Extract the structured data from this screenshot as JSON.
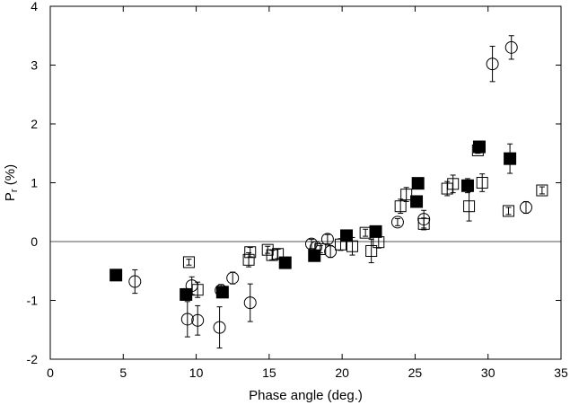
{
  "chart_data": {
    "type": "scatter",
    "xlabel": "Phase angle (deg.)",
    "ylabel_main": "P",
    "ylabel_sub": "r",
    "ylabel_rest": " (%)",
    "xlim": [
      0,
      35
    ],
    "ylim": [
      -2,
      4
    ],
    "x_ticks": [
      0,
      5,
      10,
      15,
      20,
      25,
      30,
      35
    ],
    "y_ticks": [
      -2,
      -1,
      0,
      1,
      2,
      3,
      4
    ],
    "x_tick_labels": [
      "0",
      "5",
      "10",
      "15",
      "20",
      "25",
      "30",
      "35"
    ],
    "y_tick_labels": [
      "-2",
      "-1",
      "0",
      "1",
      "2",
      "3",
      "4"
    ],
    "reference_line_y": 0,
    "grid": false,
    "legend": "none",
    "series": [
      {
        "marker": "filled-square",
        "points": [
          {
            "x": 4.5,
            "y": -0.57,
            "err": 0.05
          },
          {
            "x": 9.3,
            "y": -0.9,
            "err": 0.1
          },
          {
            "x": 11.8,
            "y": -0.86,
            "err": 0.08
          },
          {
            "x": 16.1,
            "y": -0.36,
            "err": 0.06
          },
          {
            "x": 18.1,
            "y": -0.24,
            "err": 0.05
          },
          {
            "x": 20.3,
            "y": 0.1,
            "err": 0.06
          },
          {
            "x": 22.3,
            "y": 0.17,
            "err": 0.08
          },
          {
            "x": 25.1,
            "y": 0.68,
            "err": 0.08
          },
          {
            "x": 25.2,
            "y": 0.99,
            "err": 0.08
          },
          {
            "x": 28.6,
            "y": 0.95,
            "err": 0.12
          },
          {
            "x": 29.4,
            "y": 1.61,
            "err": 0.1
          },
          {
            "x": 31.5,
            "y": 1.41,
            "err": 0.25
          }
        ]
      },
      {
        "marker": "open-square",
        "points": [
          {
            "x": 9.5,
            "y": -0.35,
            "err": 0.05
          },
          {
            "x": 10.1,
            "y": -0.82,
            "err": 0.13
          },
          {
            "x": 13.6,
            "y": -0.31,
            "err": 0.12
          },
          {
            "x": 13.7,
            "y": -0.18,
            "err": 0.08
          },
          {
            "x": 14.9,
            "y": -0.14,
            "err": 0.06
          },
          {
            "x": 15.2,
            "y": -0.23,
            "err": 0.08
          },
          {
            "x": 15.6,
            "y": -0.21,
            "err": 0.08
          },
          {
            "x": 18.5,
            "y": -0.13,
            "err": 0.06
          },
          {
            "x": 19.9,
            "y": -0.05,
            "err": 0.1
          },
          {
            "x": 20.7,
            "y": -0.08,
            "err": 0.15
          },
          {
            "x": 21.6,
            "y": 0.15,
            "err": 0.06
          },
          {
            "x": 22.0,
            "y": -0.16,
            "err": 0.2
          },
          {
            "x": 22.5,
            "y": -0.01,
            "err": 0.1
          },
          {
            "x": 24.0,
            "y": 0.6,
            "err": 0.12
          },
          {
            "x": 24.4,
            "y": 0.8,
            "err": 0.12
          },
          {
            "x": 25.6,
            "y": 0.3,
            "err": 0.1
          },
          {
            "x": 27.2,
            "y": 0.9,
            "err": 0.12
          },
          {
            "x": 27.6,
            "y": 0.98,
            "err": 0.15
          },
          {
            "x": 28.7,
            "y": 0.6,
            "err": 0.25
          },
          {
            "x": 29.3,
            "y": 1.55,
            "err": 0.05
          },
          {
            "x": 29.6,
            "y": 1.0,
            "err": 0.15
          },
          {
            "x": 31.4,
            "y": 0.52,
            "err": 0.06
          },
          {
            "x": 33.7,
            "y": 0.87,
            "err": 0.06
          }
        ]
      },
      {
        "marker": "open-circle",
        "points": [
          {
            "x": 5.8,
            "y": -0.68,
            "err": 0.2
          },
          {
            "x": 9.4,
            "y": -1.32,
            "err": 0.3
          },
          {
            "x": 9.7,
            "y": -0.75,
            "err": 0.15
          },
          {
            "x": 10.1,
            "y": -1.34,
            "err": 0.25
          },
          {
            "x": 11.6,
            "y": -1.46,
            "err": 0.35
          },
          {
            "x": 11.7,
            "y": -0.83,
            "err": 0.1
          },
          {
            "x": 12.5,
            "y": -0.62,
            "err": 0.1
          },
          {
            "x": 13.7,
            "y": -1.04,
            "err": 0.32
          },
          {
            "x": 17.9,
            "y": -0.04,
            "err": 0.08
          },
          {
            "x": 18.2,
            "y": -0.1,
            "err": 0.1
          },
          {
            "x": 19.0,
            "y": 0.04,
            "err": 0.08
          },
          {
            "x": 19.2,
            "y": -0.17,
            "err": 0.1
          },
          {
            "x": 23.8,
            "y": 0.33,
            "err": 0.06
          },
          {
            "x": 25.6,
            "y": 0.38,
            "err": 0.15
          },
          {
            "x": 30.3,
            "y": 3.02,
            "err": 0.3
          },
          {
            "x": 31.6,
            "y": 3.3,
            "err": 0.2
          },
          {
            "x": 32.6,
            "y": 0.58,
            "err": 0.1
          }
        ]
      }
    ]
  }
}
